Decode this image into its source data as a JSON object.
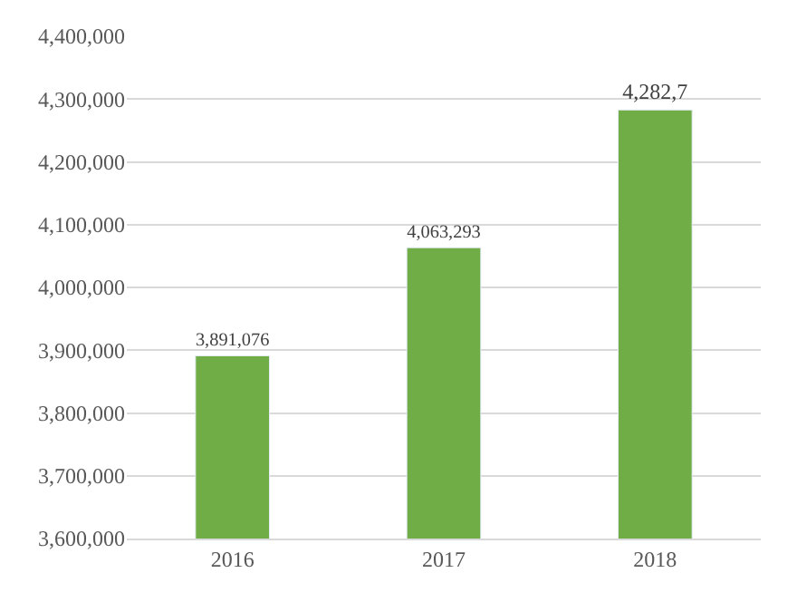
{
  "chart_data": {
    "type": "bar",
    "categories": [
      "2016",
      "2017",
      "2018"
    ],
    "values": [
      3891076,
      4063293,
      4282700
    ],
    "value_labels": [
      "3,891,076",
      "4,063,293",
      "4,282,7"
    ],
    "color": "#70ad47",
    "ylim": [
      3600000,
      4400000
    ],
    "yticks": [
      {
        "value": 3600000,
        "label": "3,600,000"
      },
      {
        "value": 3700000,
        "label": "3,700,000"
      },
      {
        "value": 3800000,
        "label": "3,800,000"
      },
      {
        "value": 3900000,
        "label": "3,900,000"
      },
      {
        "value": 4000000,
        "label": "4,000,000"
      },
      {
        "value": 4100000,
        "label": "4,100,000"
      },
      {
        "value": 4200000,
        "label": "4,200,000"
      },
      {
        "value": 4300000,
        "label": "4,300,000"
      },
      {
        "value": 4400000,
        "label": "4,400,000"
      }
    ],
    "grid": "y",
    "legend": false
  }
}
